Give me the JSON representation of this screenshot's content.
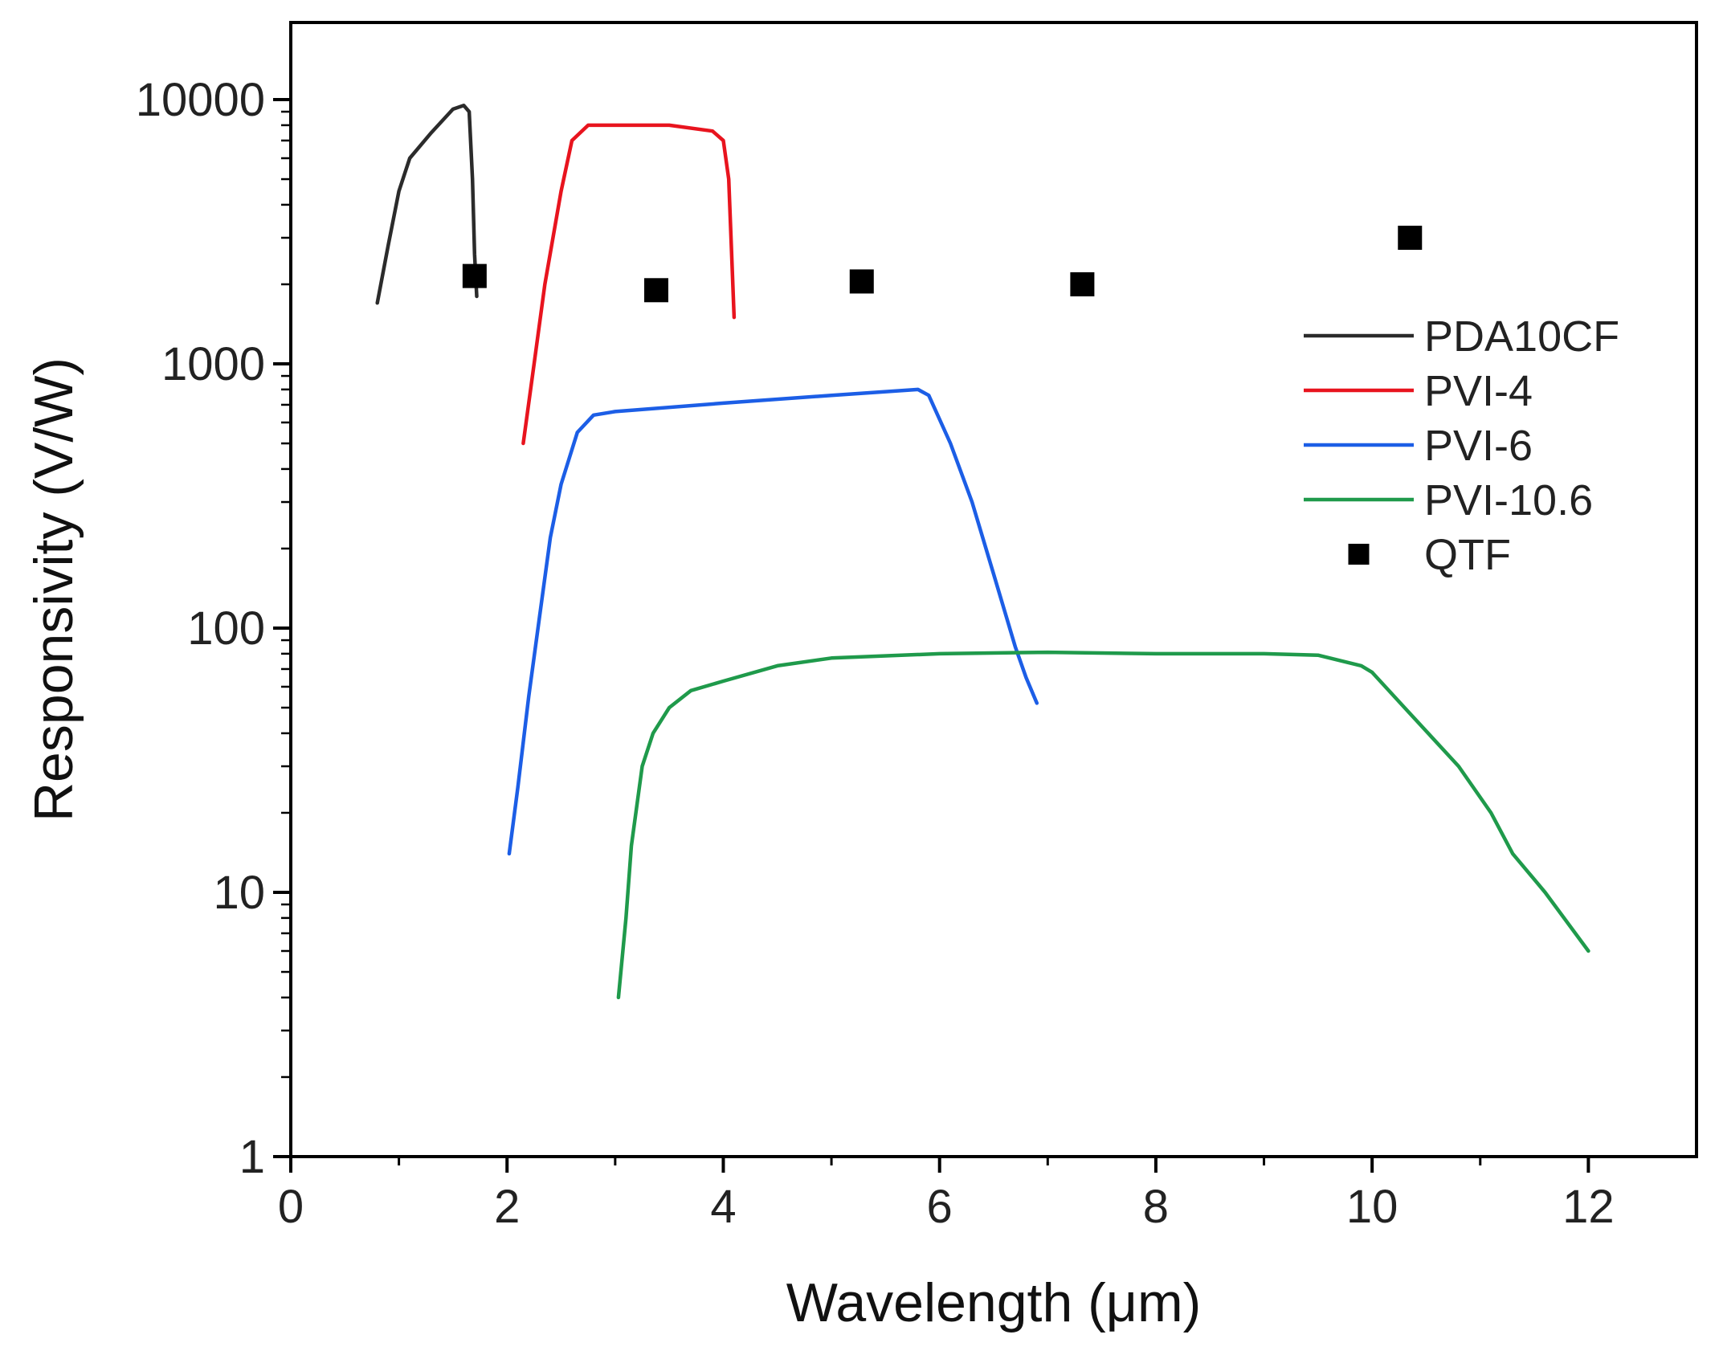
{
  "chart_data": {
    "type": "line",
    "title": "",
    "xlabel": "Wavelength (μm)",
    "ylabel": "Responsivity (V/W)",
    "xlim": [
      0,
      13
    ],
    "ylim": [
      1,
      20000
    ],
    "yscale": "log",
    "grid": false,
    "legend_position": "right",
    "x_ticks": [
      0,
      2,
      4,
      6,
      8,
      10,
      12
    ],
    "y_ticks": [
      {
        "value": 1,
        "label": "1"
      },
      {
        "value": 10,
        "label": "10"
      },
      {
        "value": 100,
        "label": "100"
      },
      {
        "value": 1000,
        "label": "1000"
      },
      {
        "value": 10000,
        "label": "10000"
      }
    ],
    "series": [
      {
        "name": "PDA10CF",
        "kind": "line",
        "color": "#2b2b2b",
        "points": [
          [
            0.8,
            1700
          ],
          [
            0.9,
            2800
          ],
          [
            1.0,
            4500
          ],
          [
            1.1,
            6000
          ],
          [
            1.3,
            7500
          ],
          [
            1.5,
            9200
          ],
          [
            1.6,
            9500
          ],
          [
            1.65,
            9000
          ],
          [
            1.68,
            5000
          ],
          [
            1.7,
            2600
          ],
          [
            1.72,
            1800
          ]
        ]
      },
      {
        "name": "PVI-4",
        "kind": "line",
        "color": "#e8141e",
        "points": [
          [
            2.15,
            500
          ],
          [
            2.25,
            1000
          ],
          [
            2.35,
            2000
          ],
          [
            2.5,
            4500
          ],
          [
            2.6,
            7000
          ],
          [
            2.75,
            8000
          ],
          [
            3.0,
            8000
          ],
          [
            3.5,
            8000
          ],
          [
            3.9,
            7600
          ],
          [
            4.0,
            7000
          ],
          [
            4.05,
            5000
          ],
          [
            4.1,
            1500
          ]
        ]
      },
      {
        "name": "PVI-6",
        "kind": "line",
        "color": "#1c5ee6",
        "points": [
          [
            2.02,
            14
          ],
          [
            2.1,
            25
          ],
          [
            2.2,
            55
          ],
          [
            2.3,
            110
          ],
          [
            2.4,
            220
          ],
          [
            2.5,
            350
          ],
          [
            2.65,
            550
          ],
          [
            2.8,
            640
          ],
          [
            3.0,
            660
          ],
          [
            4.0,
            710
          ],
          [
            5.0,
            760
          ],
          [
            5.8,
            800
          ],
          [
            5.9,
            760
          ],
          [
            6.1,
            500
          ],
          [
            6.3,
            300
          ],
          [
            6.5,
            160
          ],
          [
            6.7,
            85
          ],
          [
            6.8,
            65
          ],
          [
            6.9,
            52
          ]
        ]
      },
      {
        "name": "PVI-10.6",
        "kind": "line",
        "color": "#1f9a4b",
        "points": [
          [
            3.03,
            4
          ],
          [
            3.1,
            8
          ],
          [
            3.15,
            15
          ],
          [
            3.25,
            30
          ],
          [
            3.35,
            40
          ],
          [
            3.5,
            50
          ],
          [
            3.7,
            58
          ],
          [
            4.0,
            63
          ],
          [
            4.5,
            72
          ],
          [
            5.0,
            77
          ],
          [
            6.0,
            80
          ],
          [
            7.0,
            81
          ],
          [
            8.0,
            80
          ],
          [
            9.0,
            80
          ],
          [
            9.5,
            79
          ],
          [
            9.9,
            72
          ],
          [
            10.0,
            68
          ],
          [
            10.3,
            50
          ],
          [
            10.8,
            30
          ],
          [
            11.1,
            20
          ],
          [
            11.3,
            14
          ],
          [
            11.6,
            10
          ],
          [
            12.0,
            6
          ]
        ]
      },
      {
        "name": "QTF",
        "kind": "scatter",
        "color": "#000000",
        "points": [
          [
            1.7,
            2150
          ],
          [
            3.38,
            1900
          ],
          [
            5.28,
            2050
          ],
          [
            7.32,
            2000
          ],
          [
            10.35,
            3000
          ]
        ]
      }
    ]
  }
}
